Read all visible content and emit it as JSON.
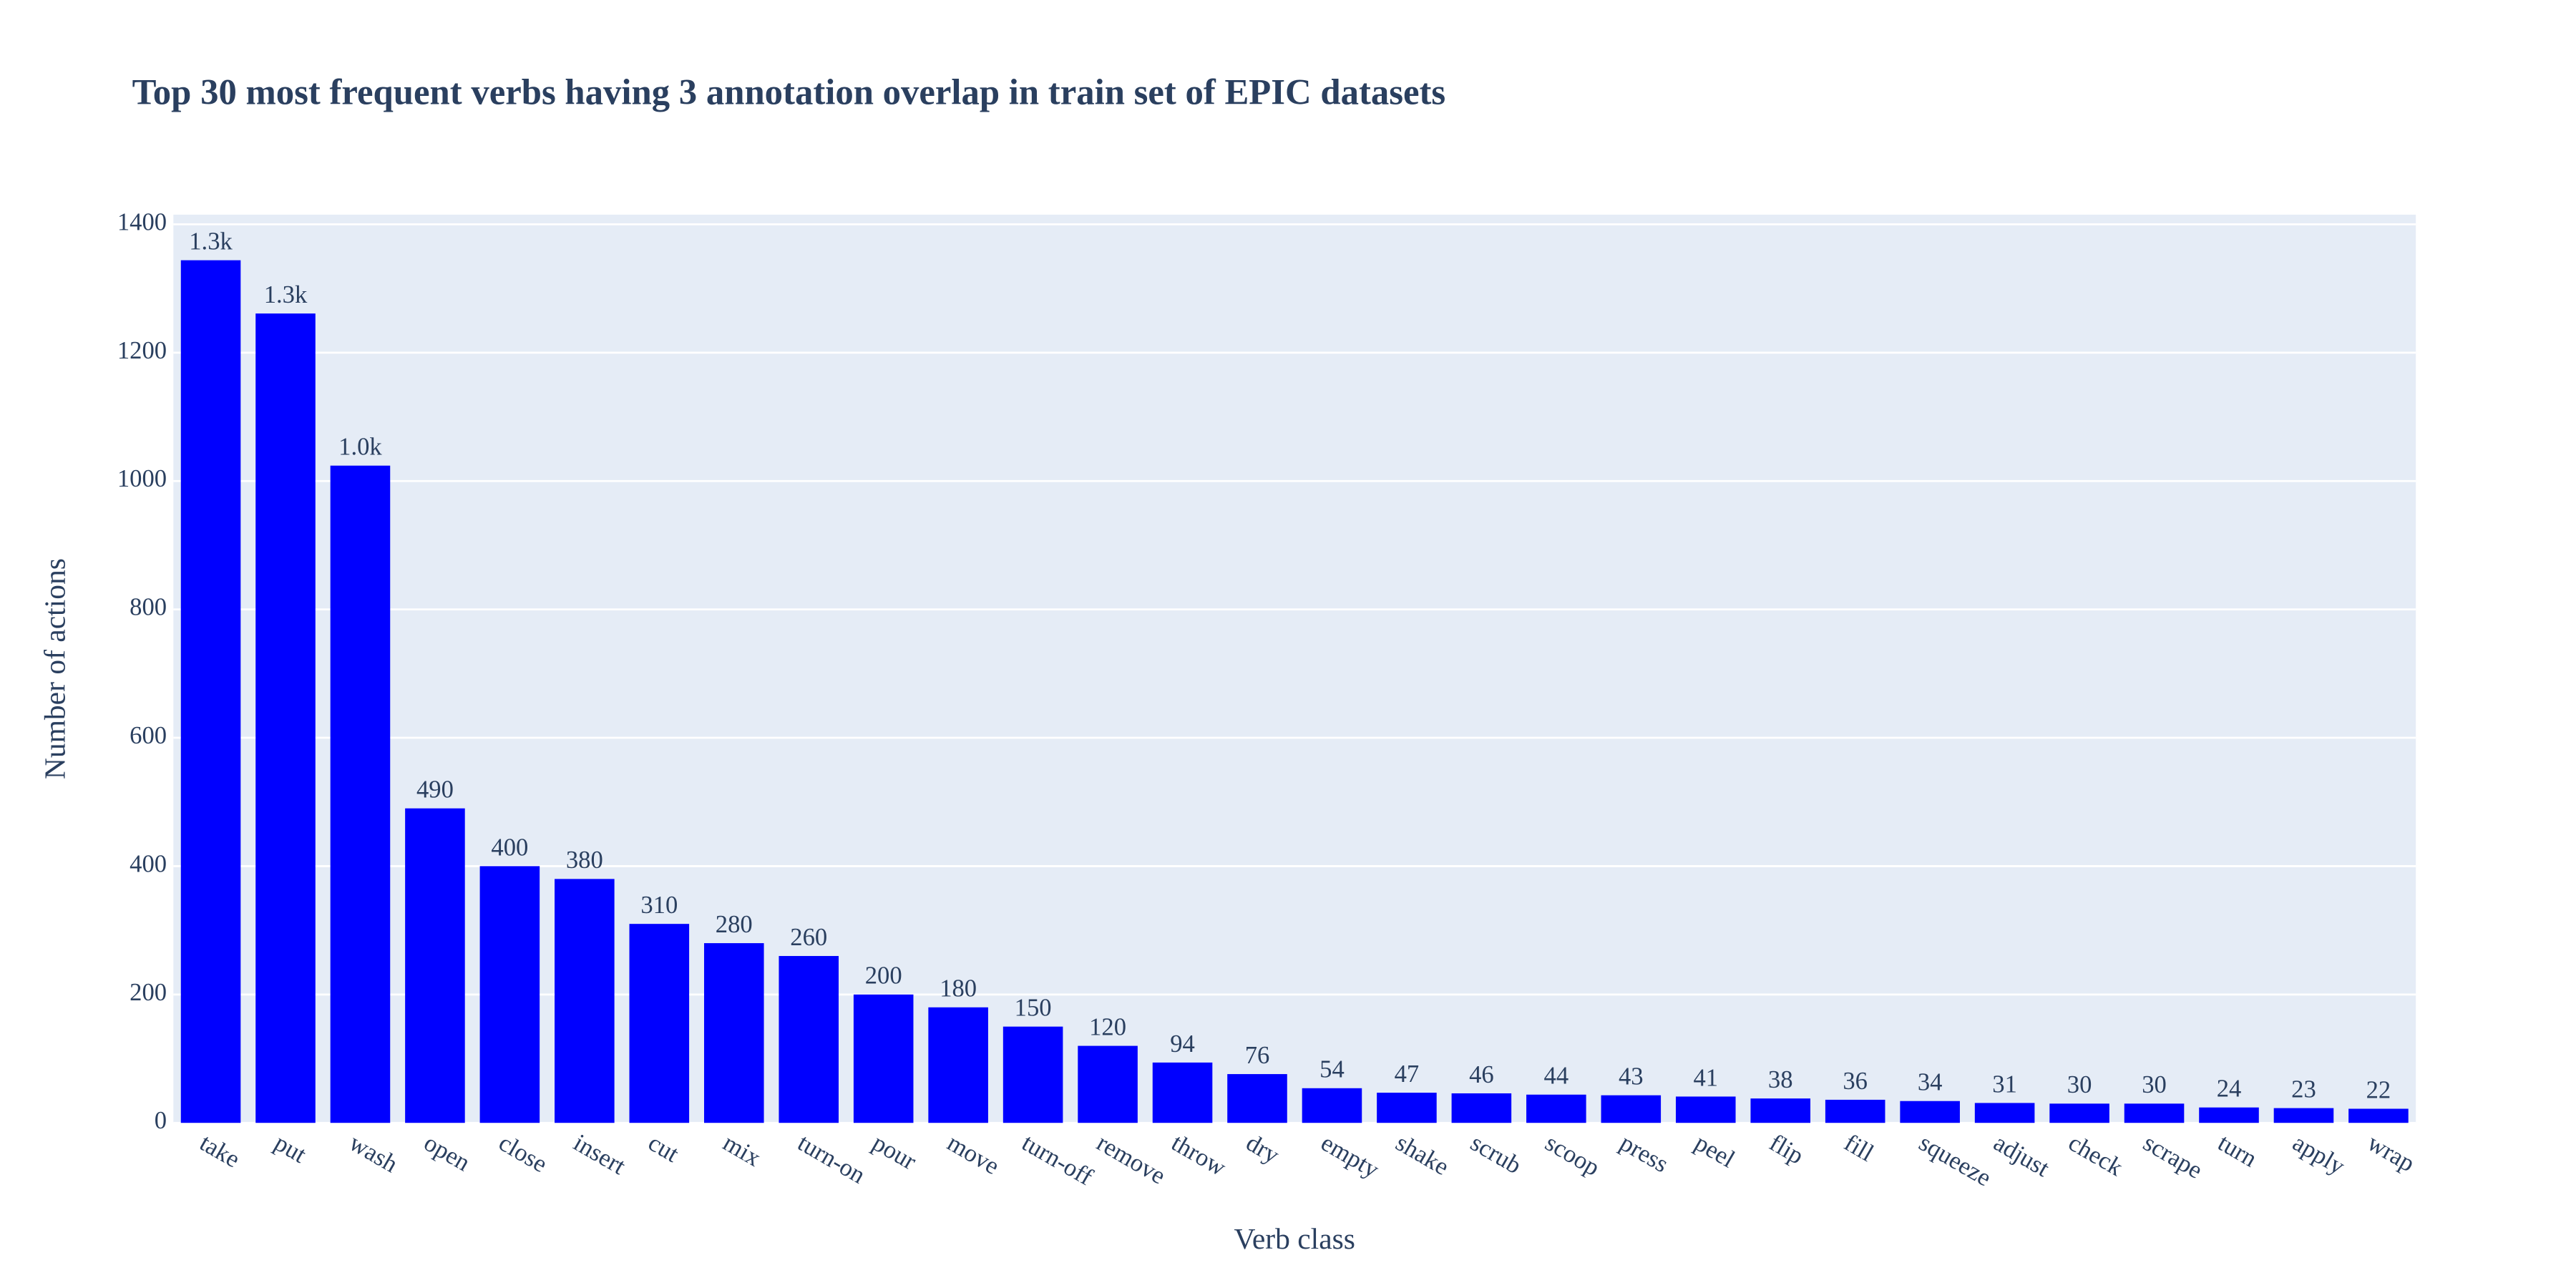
{
  "chart_data": {
    "type": "bar",
    "title": "Top 30 most frequent verbs having 3 annotation overlap in train set of EPIC datasets",
    "x_label": "Verb class",
    "y_label": "Number of actions",
    "categories": [
      "take",
      "put",
      "wash",
      "open",
      "close",
      "insert",
      "cut",
      "mix",
      "turn-on",
      "pour",
      "move",
      "turn-off",
      "remove",
      "throw",
      "dry",
      "empty",
      "shake",
      "scrub",
      "scoop",
      "press",
      "peel",
      "flip",
      "fill",
      "squeeze",
      "adjust",
      "check",
      "scrape",
      "turn",
      "apply",
      "wrap"
    ],
    "values": [
      1344,
      1261,
      1024,
      490,
      400,
      380,
      310,
      280,
      260,
      200,
      180,
      150,
      120,
      94,
      76,
      54,
      47,
      46,
      44,
      43,
      41,
      38,
      36,
      34,
      31,
      30,
      30,
      24,
      23,
      22
    ],
    "value_labels": [
      "1.3k",
      "1.3k",
      "1.0k",
      "490",
      "400",
      "380",
      "310",
      "280",
      "260",
      "200",
      "180",
      "150",
      "120",
      "94",
      "76",
      "54",
      "47",
      "46",
      "44",
      "43",
      "41",
      "38",
      "36",
      "34",
      "31",
      "30",
      "30",
      "24",
      "23",
      "22"
    ],
    "color": "#0000ff",
    "ylim": [
      0,
      1415
    ],
    "yticks": [
      0,
      200,
      400,
      600,
      800,
      1000,
      1200,
      1400
    ],
    "grid": true
  }
}
